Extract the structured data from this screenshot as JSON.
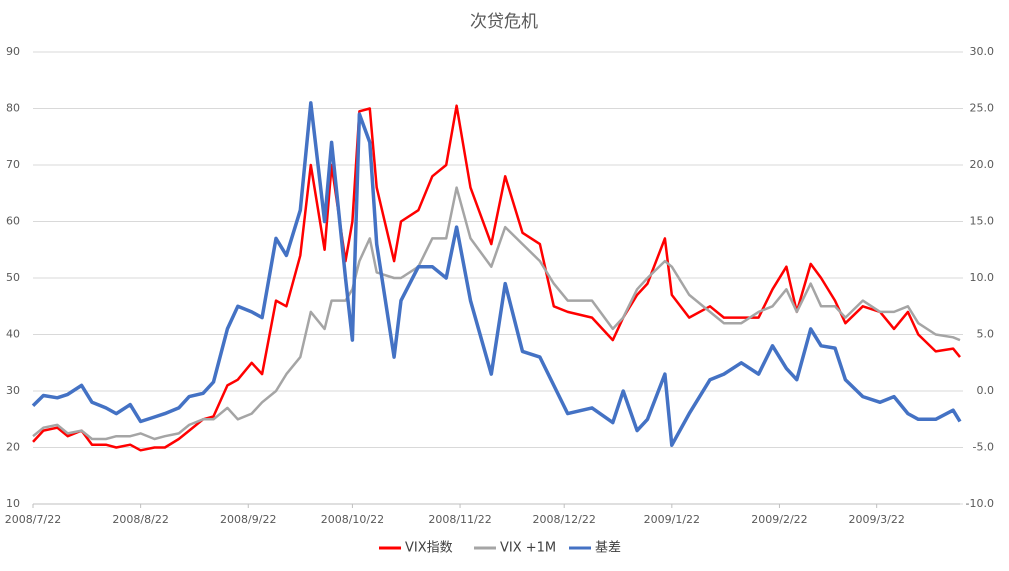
{
  "chart_data": {
    "type": "line",
    "title": "次贷危机",
    "x": [
      "2008/7/22",
      "2008/7/25",
      "2008/7/29",
      "2008/8/1",
      "2008/8/5",
      "2008/8/8",
      "2008/8/12",
      "2008/8/15",
      "2008/8/19",
      "2008/8/22",
      "2008/8/26",
      "2008/8/29",
      "2008/9/2",
      "2008/9/5",
      "2008/9/9",
      "2008/9/12",
      "2008/9/16",
      "2008/9/19",
      "2008/9/23",
      "2008/9/26",
      "2008/9/30",
      "2008/10/3",
      "2008/10/7",
      "2008/10/10",
      "2008/10/14",
      "2008/10/16",
      "2008/10/20",
      "2008/10/22",
      "2008/10/24",
      "2008/10/27",
      "2008/10/29",
      "2008/11/3",
      "2008/11/5",
      "2008/11/10",
      "2008/11/14",
      "2008/11/18",
      "2008/11/21",
      "2008/11/25",
      "2008/12/1",
      "2008/12/5",
      "2008/12/10",
      "2008/12/15",
      "2008/12/19",
      "2008/12/23",
      "2008/12/30",
      "2009/1/5",
      "2009/1/8",
      "2009/1/12",
      "2009/1/15",
      "2009/1/20",
      "2009/1/22",
      "2009/1/27",
      "2009/2/2",
      "2009/2/6",
      "2009/2/11",
      "2009/2/16",
      "2009/2/20",
      "2009/2/24",
      "2009/2/27",
      "2009/3/3",
      "2009/3/6",
      "2009/3/10",
      "2009/3/13",
      "2009/3/18",
      "2009/3/23",
      "2009/3/27",
      "2009/3/31",
      "2009/4/3",
      "2009/4/8",
      "2009/4/13",
      "2009/4/15"
    ],
    "series": [
      {
        "name": "VIX指数",
        "color": "#ff0000",
        "axis": "y",
        "values": [
          21,
          23,
          23.5,
          22,
          23,
          20.5,
          20.5,
          20,
          20.5,
          19.5,
          20,
          20,
          21.5,
          23,
          25,
          25.5,
          31,
          32,
          35,
          33,
          46,
          45,
          54,
          70,
          55,
          70,
          53,
          60,
          79.5,
          80,
          66,
          53,
          60,
          62,
          68,
          70,
          80.5,
          66,
          56,
          68,
          58,
          56,
          45,
          44,
          43,
          39,
          43,
          47,
          49,
          57,
          47,
          43,
          45,
          43,
          43,
          43,
          48,
          52,
          44,
          52.5,
          50,
          46,
          42,
          45,
          44,
          41,
          44,
          40,
          37,
          37.5,
          36
        ]
      },
      {
        "name": "VIX +1M",
        "color": "#a5a5a5",
        "axis": "y",
        "values": [
          22,
          23.5,
          24,
          22.5,
          23,
          21.5,
          21.5,
          22,
          22,
          22.5,
          21.5,
          22,
          22.5,
          24,
          25,
          25,
          27,
          25,
          26,
          28,
          30,
          33,
          36,
          44,
          41,
          46,
          46,
          48,
          53,
          57,
          51,
          50,
          50,
          52,
          57,
          57,
          66,
          57,
          52,
          59,
          56,
          53,
          49,
          46,
          46,
          41,
          43,
          48,
          50,
          53,
          52,
          47,
          44,
          42,
          42,
          44,
          45,
          48,
          44,
          49,
          45,
          45,
          43,
          46,
          44,
          44,
          45,
          42,
          40,
          39.5,
          39
        ]
      },
      {
        "name": "基差",
        "color": "#4472c4",
        "axis": "y2",
        "values": [
          -1.3,
          -0.4,
          -0.6,
          -0.3,
          0.5,
          -1,
          -1.5,
          -2,
          -1.2,
          -2.7,
          -2.3,
          -2,
          -1.5,
          -0.5,
          -0.2,
          0.8,
          5.5,
          7.5,
          7,
          6.5,
          13.5,
          12,
          16,
          25.5,
          15,
          22,
          10,
          4.5,
          24.5,
          22,
          13,
          3,
          8,
          11,
          11,
          10,
          14.5,
          8,
          1.5,
          9.5,
          3.5,
          3,
          0.5,
          -2,
          -1.5,
          -2.8,
          0,
          -3.5,
          -2.5,
          1.5,
          -4.8,
          -2,
          1,
          1.5,
          2.5,
          1.5,
          4,
          2,
          1,
          5.5,
          4,
          3.8,
          1,
          -0.5,
          -1,
          -0.5,
          -2,
          -2.5,
          -2.5,
          -1.7,
          -2.7
        ]
      }
    ],
    "xlim": [
      "2008/7/22",
      "2009/4/15"
    ],
    "xticks": [
      "2008/7/22",
      "2008/8/22",
      "2008/9/22",
      "2008/10/22",
      "2008/11/22",
      "2008/12/22",
      "2009/1/22",
      "2009/2/22",
      "2009/3/22"
    ],
    "ylim": [
      10,
      90
    ],
    "yticks": [
      10,
      20,
      30,
      40,
      50,
      60,
      70,
      80,
      90
    ],
    "y2lim": [
      -10,
      30
    ],
    "y2ticks": [
      {
        "value": -10,
        "label": "-10.0"
      },
      {
        "value": -5,
        "label": "-5.0"
      },
      {
        "value": 0,
        "label": "0.0"
      },
      {
        "value": 5,
        "label": "5.0"
      },
      {
        "value": 10,
        "label": "10.0"
      },
      {
        "value": 15,
        "label": "15.0"
      },
      {
        "value": 20,
        "label": "20.0"
      },
      {
        "value": 25,
        "label": "25.0"
      },
      {
        "value": 30,
        "label": "30.0"
      }
    ],
    "grid": true,
    "legend": "bottom"
  }
}
